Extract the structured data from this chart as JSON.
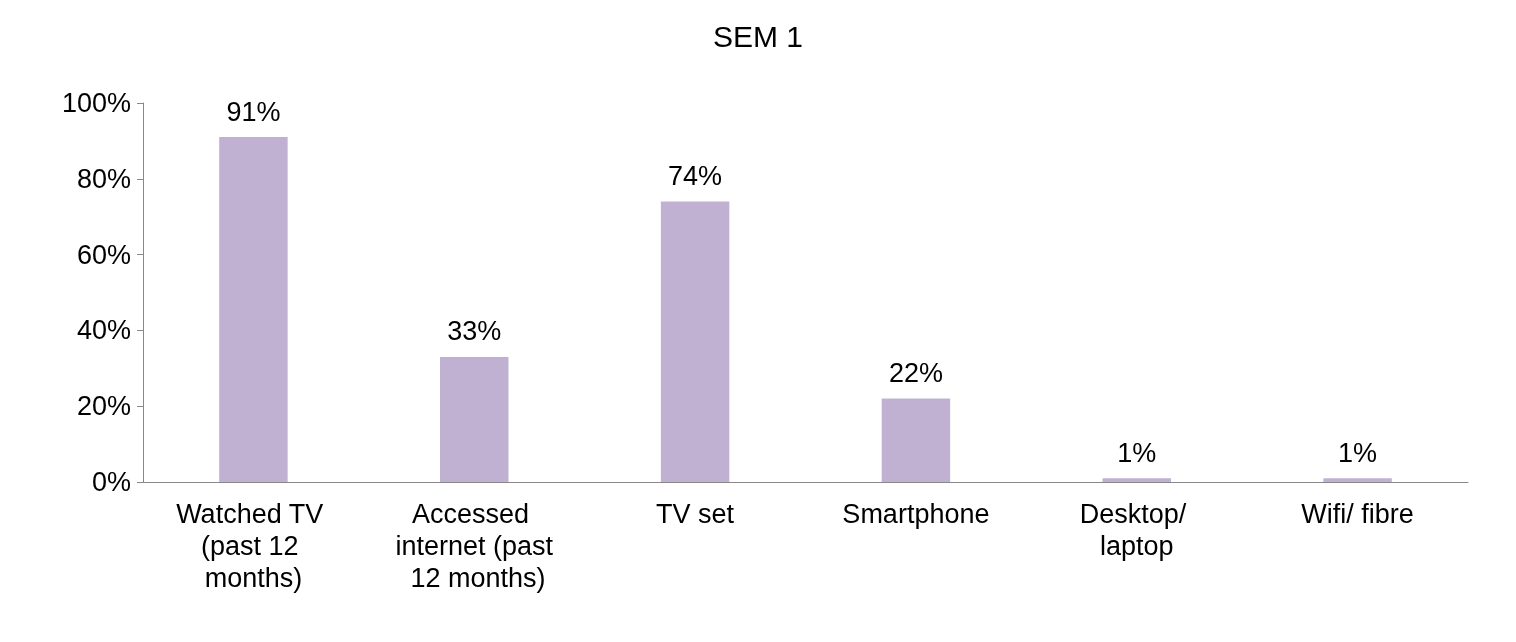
{
  "chart_data": {
    "type": "bar",
    "title": "SEM 1",
    "categories": [
      "Watched TV (past 12 months)",
      "Accessed internet (past 12 months)",
      "TV set",
      "Smartphone",
      "Desktop/ laptop",
      "Wifi/ fibre"
    ],
    "values": [
      91,
      33,
      74,
      22,
      1,
      1
    ],
    "value_labels": [
      "91%",
      "33%",
      "74%",
      "22%",
      "1%",
      "1%"
    ],
    "color": "#c0b1d3",
    "ylim": [
      0,
      100
    ],
    "yticks": [
      {
        "value": 0,
        "label": "0%"
      },
      {
        "value": 20,
        "label": "20%"
      },
      {
        "value": 40,
        "label": "40%"
      },
      {
        "value": 60,
        "label": "60%"
      },
      {
        "value": 80,
        "label": "80%"
      },
      {
        "value": 100,
        "label": "100%"
      }
    ],
    "grid": false
  }
}
